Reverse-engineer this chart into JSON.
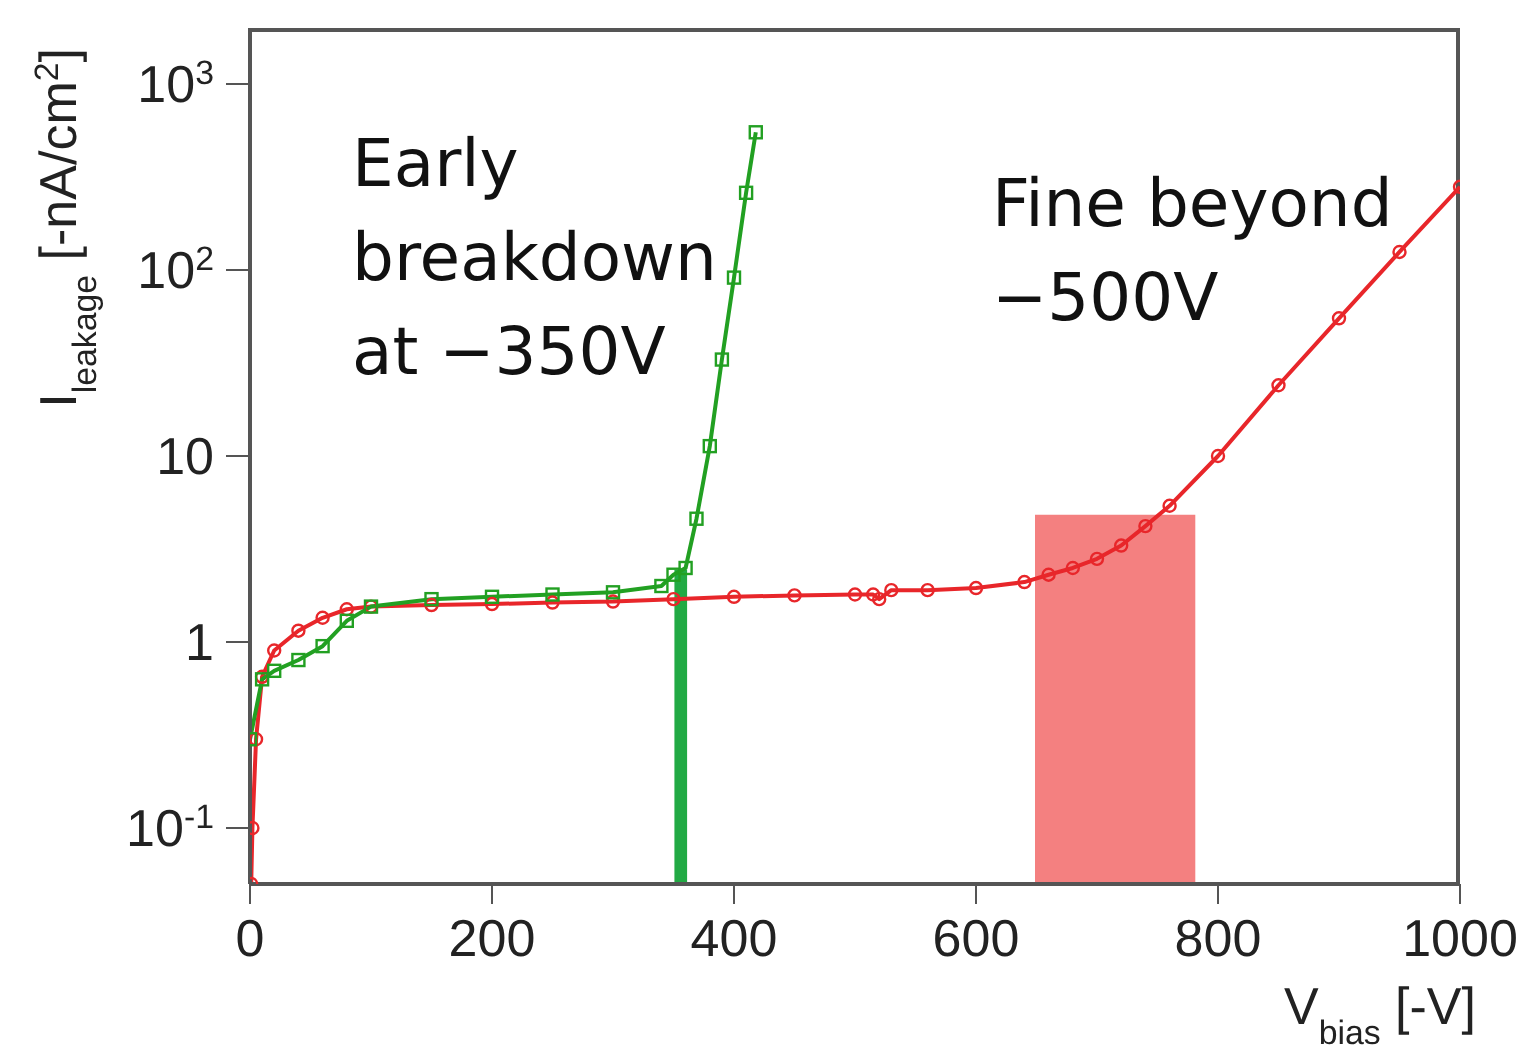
{
  "chart_data": {
    "type": "line",
    "xlabel": "V$_{bias}$ [-V]",
    "ylabel": "I$_{leakage}$ [-nA/cm$^{2}$]",
    "series": [
      {
        "color": "#e8262a",
        "marker": "circle",
        "x": [
          1,
          2,
          5,
          10,
          20,
          40,
          60,
          80,
          100,
          150,
          200,
          250,
          300,
          350,
          400,
          450,
          500,
          515,
          520,
          530,
          560,
          600,
          640,
          660,
          680,
          700,
          720,
          740,
          760,
          800,
          850,
          900,
          950,
          1000
        ],
        "values": [
          0.05,
          0.1,
          0.3,
          0.65,
          0.9,
          1.15,
          1.35,
          1.5,
          1.55,
          1.58,
          1.6,
          1.63,
          1.65,
          1.7,
          1.75,
          1.78,
          1.8,
          1.8,
          1.7,
          1.9,
          1.9,
          1.95,
          2.1,
          2.3,
          2.5,
          2.8,
          3.3,
          4.2,
          5.4,
          10,
          24,
          55,
          125,
          280
        ]
      },
      {
        "color": "#22a022",
        "marker": "square",
        "x": [
          0,
          10,
          20,
          40,
          60,
          80,
          100,
          150,
          200,
          250,
          300,
          340,
          350,
          360,
          369,
          380,
          390,
          400,
          410,
          418
        ],
        "values": [
          0.3,
          0.63,
          0.7,
          0.8,
          0.95,
          1.3,
          1.55,
          1.7,
          1.75,
          1.8,
          1.85,
          2.0,
          2.3,
          2.5,
          4.6,
          11.3,
          33,
          91,
          260,
          550
        ]
      },
      {
        "type": "histogram",
        "color": "#22aa44",
        "bins": [
          352,
          360
        ],
        "values": [
          2.4
        ]
      },
      {
        "type": "histogram",
        "color": "#f48080",
        "bins": [
          650,
          780
        ],
        "values": [
          4.75
        ]
      }
    ],
    "xlim": [
      0,
      1000
    ],
    "xticks": [
      0,
      200,
      400,
      600,
      800,
      1000
    ],
    "ylim": [
      0.05,
      2000
    ],
    "log": "y",
    "yticks": [
      {
        "value": 0.1,
        "label": "10$^{-1}$"
      },
      1,
      10,
      {
        "value": 100,
        "label": "10$^{2}$"
      },
      {
        "value": 1000,
        "label": "10$^{3}$"
      }
    ],
    "annotations": [
      "Early breakdown at −350V",
      "Fine beyond −500V"
    ]
  }
}
